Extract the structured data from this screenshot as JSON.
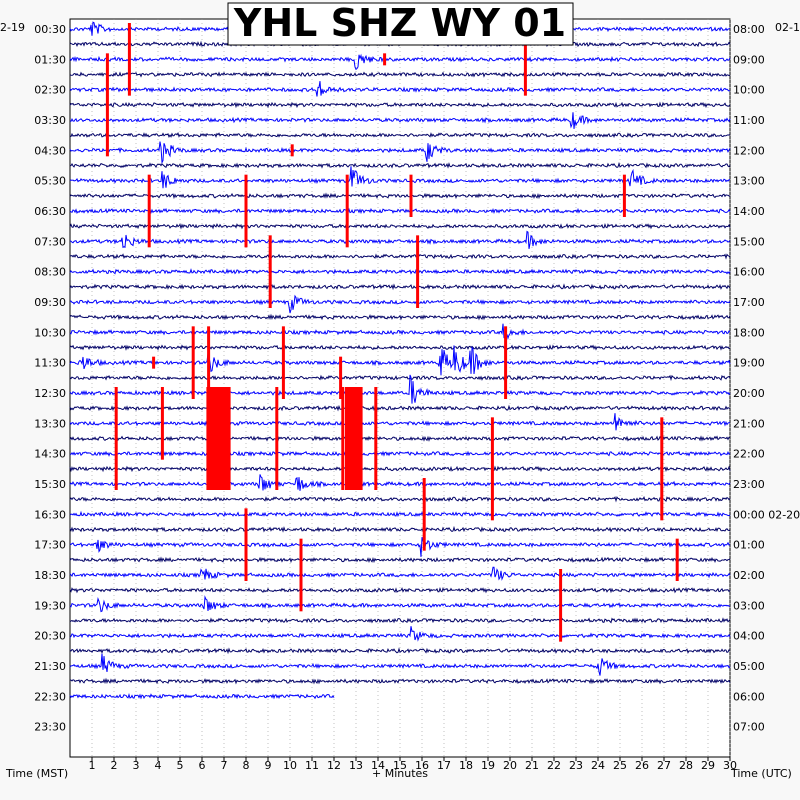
{
  "chart_data": {
    "type": "helicorder",
    "title": "YHL SHZ WY 01",
    "xlabel": "+ Minutes",
    "left_axis_label": "Time (MST)",
    "right_axis_label": "Time (UTC)",
    "left_date": "2-19",
    "right_date": "02-1",
    "x_ticks": [
      1,
      2,
      3,
      4,
      5,
      6,
      7,
      8,
      9,
      10,
      11,
      12,
      13,
      14,
      15,
      16,
      17,
      18,
      19,
      20,
      21,
      22,
      23,
      24,
      25,
      26,
      27,
      28,
      29,
      30
    ],
    "xlim": [
      0,
      30
    ],
    "rows_per_hour": 2,
    "left_tick_labels": [
      "00:30",
      "01:30",
      "02:30",
      "03:30",
      "04:30",
      "05:30",
      "06:30",
      "07:30",
      "08:30",
      "09:30",
      "10:30",
      "11:30",
      "12:30",
      "13:30",
      "14:30",
      "15:30",
      "16:30",
      "17:30",
      "18:30",
      "19:30",
      "20:30",
      "21:30",
      "22:30",
      "23:30"
    ],
    "right_tick_labels": [
      "08:00",
      "09:00",
      "10:00",
      "11:00",
      "12:00",
      "13:00",
      "14:00",
      "15:00",
      "16:00",
      "17:00",
      "18:00",
      "19:00",
      "20:00",
      "21:00",
      "22:00",
      "23:00",
      "00:00 02-20",
      "01:00",
      "02:00",
      "03:00",
      "04:00",
      "05:00",
      "06:00",
      "07:00"
    ],
    "trace_colors": [
      "#0000ff",
      "#000066"
    ],
    "clip_color": "#ff0000",
    "last_trace_end_minute": 12,
    "clipped_events": [
      {
        "row": 0,
        "minute": 2.7,
        "rows": 3
      },
      {
        "row": 0,
        "minute": 20.7,
        "rows": 3
      },
      {
        "row": 1,
        "minute": 1.7,
        "rows": 4
      },
      {
        "row": 1,
        "minute": 14.3,
        "rows": 1
      },
      {
        "row": 4,
        "minute": 10.1,
        "rows": 1
      },
      {
        "row": 5,
        "minute": 12.6,
        "rows": 3
      },
      {
        "row": 5,
        "minute": 25.2,
        "rows": 2
      },
      {
        "row": 5,
        "minute": 15.5,
        "rows": 2
      },
      {
        "row": 5,
        "minute": 3.6,
        "rows": 3
      },
      {
        "row": 5,
        "minute": 8.0,
        "rows": 3
      },
      {
        "row": 7,
        "minute": 9.1,
        "rows": 3
      },
      {
        "row": 7,
        "minute": 15.8,
        "rows": 3
      },
      {
        "row": 10,
        "minute": 5.6,
        "rows": 3
      },
      {
        "row": 10,
        "minute": 6.3,
        "rows": 6
      },
      {
        "row": 10,
        "minute": 9.7,
        "rows": 3
      },
      {
        "row": 10,
        "minute": 19.8,
        "rows": 3
      },
      {
        "row": 11,
        "minute": 3.8,
        "rows": 1
      },
      {
        "row": 11,
        "minute": 12.3,
        "rows": 2
      },
      {
        "row": 12,
        "minute": 6.3,
        "rows": 4
      },
      {
        "row": 12,
        "minute": 9.4,
        "rows": 4
      },
      {
        "row": 12,
        "minute": 12.4,
        "rows": 4
      },
      {
        "row": 12,
        "minute": 13.9,
        "rows": 4
      },
      {
        "row": 12,
        "minute": 2.1,
        "rows": 4
      },
      {
        "row": 12,
        "minute": 4.2,
        "rows": 3
      },
      {
        "row": 13,
        "minute": 19.2,
        "rows": 4
      },
      {
        "row": 13,
        "minute": 26.9,
        "rows": 4
      },
      {
        "row": 15,
        "minute": 16.1,
        "rows": 3
      },
      {
        "row": 16,
        "minute": 8.0,
        "rows": 3
      },
      {
        "row": 17,
        "minute": 10.5,
        "rows": 3
      },
      {
        "row": 17,
        "minute": 27.6,
        "rows": 2
      },
      {
        "row": 18,
        "minute": 22.3,
        "rows": 3
      }
    ],
    "wide_clips": [
      {
        "row": 12,
        "start_minute": 6.2,
        "end_minute": 7.3,
        "rows": 4
      },
      {
        "row": 12,
        "start_minute": 12.5,
        "end_minute": 13.3,
        "rows": 4
      }
    ],
    "noise_events": [
      {
        "row": 0,
        "minute": 1.0,
        "amp": 8
      },
      {
        "row": 0,
        "minute": 15.0,
        "amp": 14
      },
      {
        "row": 1,
        "minute": 13.0,
        "amp": 12
      },
      {
        "row": 2,
        "minute": 11.2,
        "amp": 12
      },
      {
        "row": 3,
        "minute": 22.8,
        "amp": 10
      },
      {
        "row": 4,
        "minute": 4.1,
        "amp": 14
      },
      {
        "row": 4,
        "minute": 16.2,
        "amp": 12
      },
      {
        "row": 5,
        "minute": 4.2,
        "amp": 10
      },
      {
        "row": 5,
        "minute": 12.8,
        "amp": 16
      },
      {
        "row": 5,
        "minute": 25.5,
        "amp": 12
      },
      {
        "row": 7,
        "minute": 2.4,
        "amp": 10
      },
      {
        "row": 7,
        "minute": 20.8,
        "amp": 8
      },
      {
        "row": 9,
        "minute": 10.0,
        "amp": 10
      },
      {
        "row": 10,
        "minute": 19.7,
        "amp": 8
      },
      {
        "row": 11,
        "minute": 0.5,
        "amp": 10
      },
      {
        "row": 11,
        "minute": 6.3,
        "amp": 12
      },
      {
        "row": 11,
        "minute": 16.8,
        "amp": 20
      },
      {
        "row": 11,
        "minute": 17.5,
        "amp": 14
      },
      {
        "row": 11,
        "minute": 18.2,
        "amp": 16
      },
      {
        "row": 12,
        "minute": 15.5,
        "amp": 16
      },
      {
        "row": 13,
        "minute": 24.8,
        "amp": 10
      },
      {
        "row": 15,
        "minute": 8.6,
        "amp": 12
      },
      {
        "row": 15,
        "minute": 10.3,
        "amp": 10
      },
      {
        "row": 17,
        "minute": 1.2,
        "amp": 8
      },
      {
        "row": 17,
        "minute": 16.0,
        "amp": 10
      },
      {
        "row": 18,
        "minute": 6.0,
        "amp": 8
      },
      {
        "row": 18,
        "minute": 19.2,
        "amp": 10
      },
      {
        "row": 19,
        "minute": 1.3,
        "amp": 8
      },
      {
        "row": 19,
        "minute": 6.1,
        "amp": 10
      },
      {
        "row": 20,
        "minute": 15.5,
        "amp": 8
      },
      {
        "row": 21,
        "minute": 1.5,
        "amp": 10
      },
      {
        "row": 21,
        "minute": 24.0,
        "amp": 12
      }
    ]
  }
}
